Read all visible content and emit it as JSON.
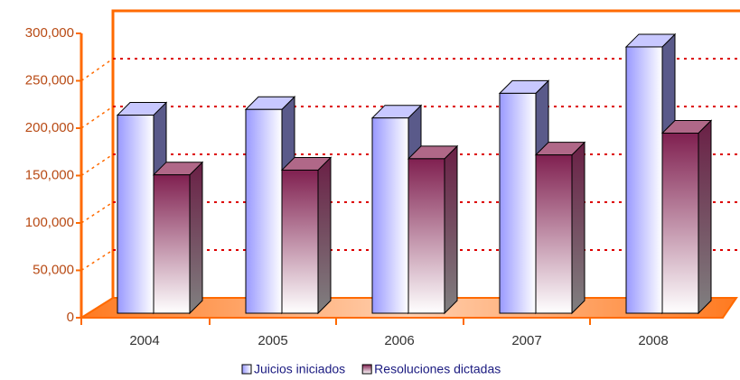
{
  "chart_data": {
    "type": "bar3d",
    "categories": [
      "2004",
      "2005",
      "2006",
      "2007",
      "2008"
    ],
    "series": [
      {
        "name": "Juicios iniciados",
        "color": "#9999ff",
        "values": [
          209000,
          215000,
          206000,
          232000,
          281000
        ]
      },
      {
        "name": "Resoluciones dictadas",
        "color": "#993366",
        "values": [
          146000,
          151000,
          163000,
          167000,
          190000
        ]
      }
    ],
    "ylim": [
      0,
      300000
    ],
    "yticks": [
      0,
      {
        "value": 50000,
        "label": "50,000"
      },
      {
        "value": 100000,
        "label": "100,000"
      },
      {
        "value": 150000,
        "label": "150,000"
      },
      {
        "value": 200000,
        "label": "200,000"
      },
      {
        "value": 250000,
        "label": "250,000"
      },
      {
        "value": 300000,
        "label": "300,000"
      }
    ],
    "grid": true,
    "legend": "bottom"
  }
}
